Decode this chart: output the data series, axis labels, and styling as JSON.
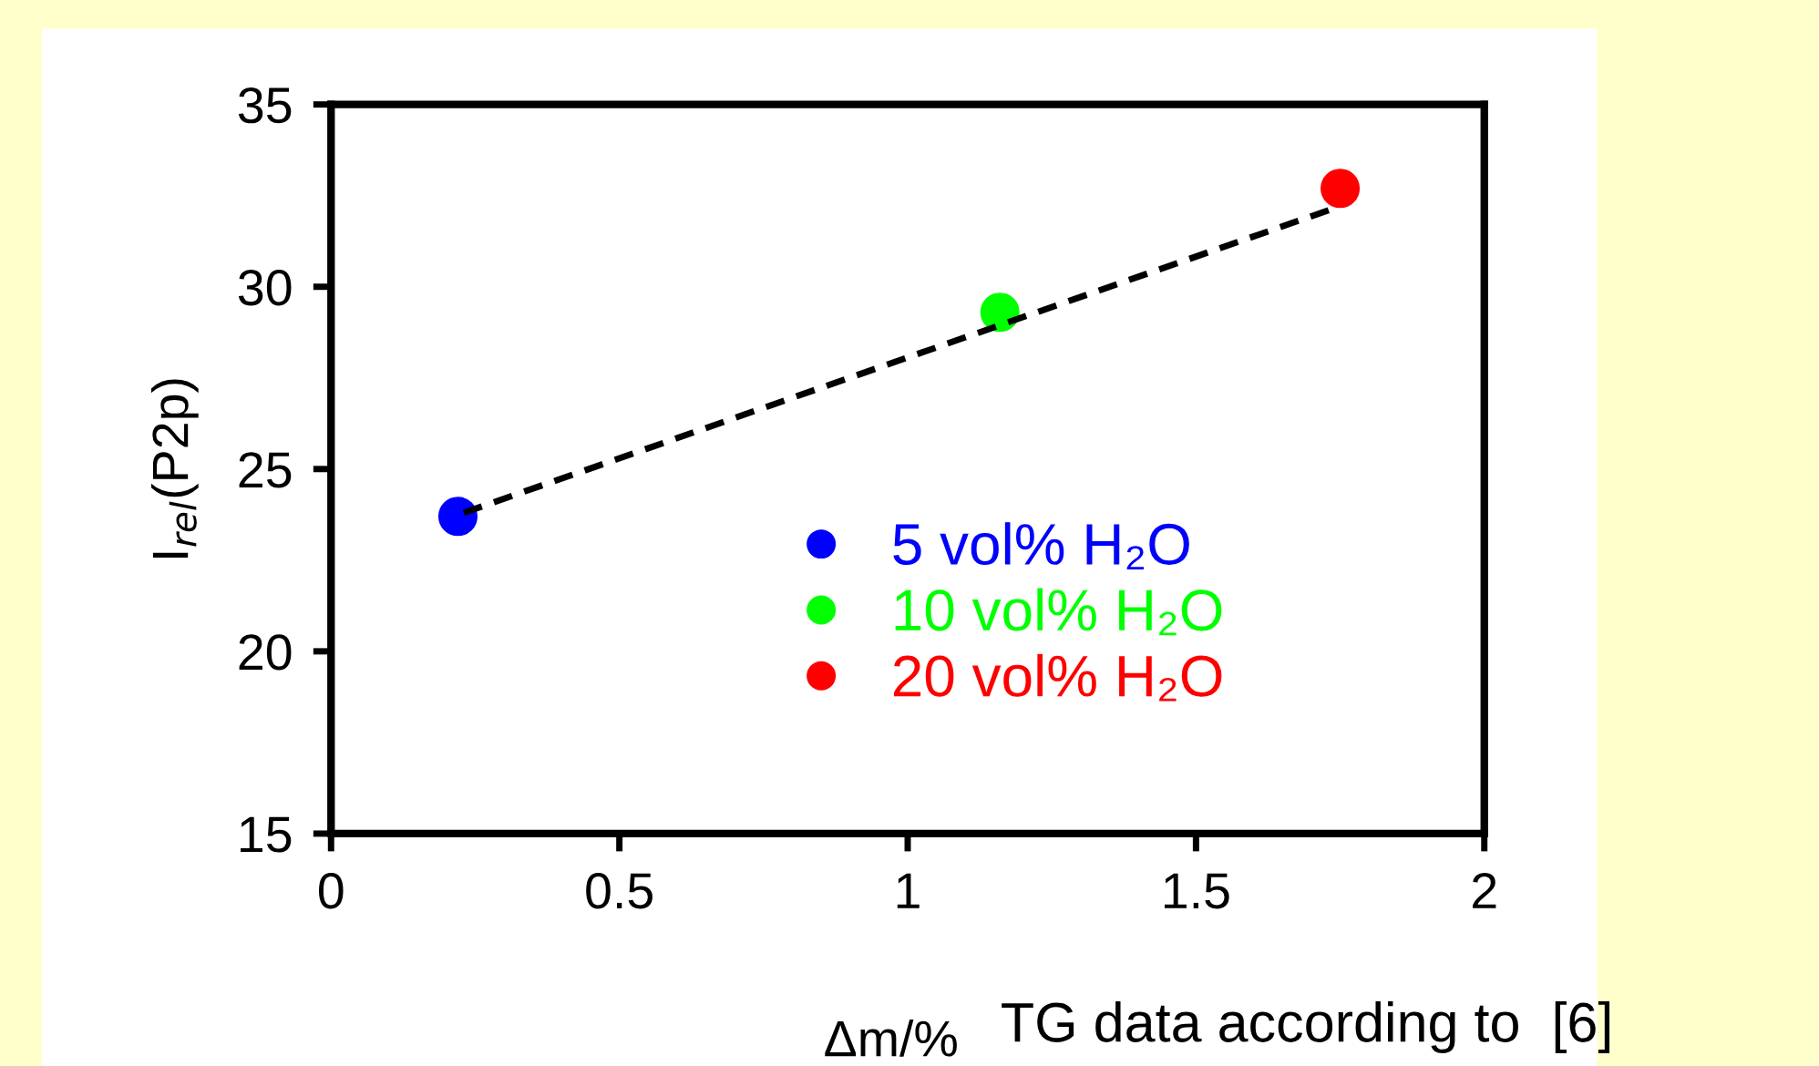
{
  "chart_data": {
    "type": "scatter",
    "xlabel": "Δm/%",
    "ylabel": "I$_{rel}$(P2p)",
    "annotations": [
      "TG data according to  [6]"
    ],
    "series": [
      {
        "name": "5 vol% H₂O",
        "color": "#0000ff",
        "x": [
          0.22
        ],
        "values": [
          23.7
        ]
      },
      {
        "name": "10 vol% H₂O",
        "color": "#00ff00",
        "x": [
          1.16
        ],
        "values": [
          29.3
        ]
      },
      {
        "name": "20 vol% H₂O",
        "color": "#ff0000",
        "x": [
          1.75
        ],
        "values": [
          32.7
        ]
      },
      {
        "type": "line",
        "color": "#000000",
        "x": [
          0.23,
          1.73
        ],
        "values": [
          23.8,
          32.1
        ],
        "line_style": "dashed",
        "marker": "none"
      }
    ],
    "xlim": [
      0,
      2
    ],
    "xticks": [
      0,
      0.5,
      1,
      1.5,
      2
    ],
    "ylim": [
      15,
      35
    ],
    "yticks": [
      15,
      20,
      25,
      30,
      35
    ],
    "marker": "circle",
    "grid": false,
    "legend": "bottom right"
  }
}
